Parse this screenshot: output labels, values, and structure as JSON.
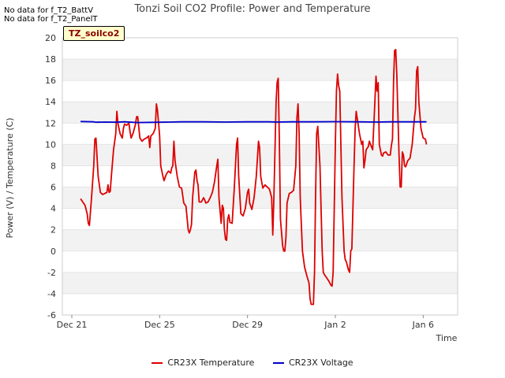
{
  "no_data_messages": [
    "No data for f_T2_BattV",
    "No data for f_T2_PanelT"
  ],
  "site_badge": "TZ_soilco2",
  "chart_data": {
    "type": "line",
    "title": "Tonzi Soil CO2 Profile: Power and Temperature",
    "xlabel": "Time",
    "ylabel": "Power (V) / Temperature (C)",
    "ylim": [
      -6,
      20
    ],
    "yticks": [
      -6,
      -4,
      -2,
      0,
      2,
      4,
      6,
      8,
      10,
      12,
      14,
      16,
      18,
      20
    ],
    "xlim_days": [
      0,
      18
    ],
    "xticks": [
      {
        "day": 0,
        "label": "Dec 21"
      },
      {
        "day": 4,
        "label": "Dec 25"
      },
      {
        "day": 8,
        "label": "Dec 29"
      },
      {
        "day": 12,
        "label": "Jan 2"
      },
      {
        "day": 16,
        "label": "Jan 6"
      }
    ],
    "grid": "alternating horizontal bands",
    "legend_position": "bottom",
    "series": [
      {
        "name": "CR23X Temperature",
        "color": "#dd0000",
        "points": [
          [
            0.4,
            4.9
          ],
          [
            0.6,
            4.3
          ],
          [
            0.7,
            3.5
          ],
          [
            0.75,
            2.6
          ],
          [
            0.8,
            2.4
          ],
          [
            0.9,
            5.0
          ],
          [
            1.0,
            8.0
          ],
          [
            1.05,
            10.5
          ],
          [
            1.1,
            10.6
          ],
          [
            1.2,
            7.0
          ],
          [
            1.3,
            5.5
          ],
          [
            1.4,
            5.3
          ],
          [
            1.5,
            5.4
          ],
          [
            1.6,
            5.5
          ],
          [
            1.65,
            6.2
          ],
          [
            1.7,
            5.5
          ],
          [
            1.75,
            5.6
          ],
          [
            1.8,
            7.0
          ],
          [
            1.9,
            9.5
          ],
          [
            2.0,
            11.0
          ],
          [
            2.05,
            13.1
          ],
          [
            2.1,
            12.0
          ],
          [
            2.2,
            11.0
          ],
          [
            2.3,
            10.6
          ],
          [
            2.35,
            11.5
          ],
          [
            2.4,
            11.9
          ],
          [
            2.5,
            11.8
          ],
          [
            2.6,
            12.0
          ],
          [
            2.65,
            11.2
          ],
          [
            2.7,
            10.6
          ],
          [
            2.8,
            11.1
          ],
          [
            2.9,
            11.9
          ],
          [
            2.95,
            12.6
          ],
          [
            3.0,
            12.6
          ],
          [
            3.1,
            10.6
          ],
          [
            3.2,
            10.3
          ],
          [
            3.3,
            10.5
          ],
          [
            3.4,
            10.6
          ],
          [
            3.5,
            10.8
          ],
          [
            3.55,
            9.7
          ],
          [
            3.6,
            10.8
          ],
          [
            3.7,
            11.0
          ],
          [
            3.8,
            11.5
          ],
          [
            3.85,
            13.8
          ],
          [
            3.9,
            13.2
          ],
          [
            4.0,
            10.8
          ],
          [
            4.05,
            8.0
          ],
          [
            4.15,
            7.0
          ],
          [
            4.2,
            6.6
          ],
          [
            4.3,
            7.2
          ],
          [
            4.4,
            7.5
          ],
          [
            4.5,
            7.3
          ],
          [
            4.55,
            7.8
          ],
          [
            4.6,
            8.0
          ],
          [
            4.65,
            10.3
          ],
          [
            4.7,
            8.5
          ],
          [
            4.8,
            7.0
          ],
          [
            4.9,
            6.0
          ],
          [
            5.0,
            5.9
          ],
          [
            5.1,
            4.5
          ],
          [
            5.2,
            4.2
          ],
          [
            5.3,
            2.0
          ],
          [
            5.35,
            1.7
          ],
          [
            5.4,
            2.0
          ],
          [
            5.45,
            2.5
          ],
          [
            5.5,
            5.0
          ],
          [
            5.6,
            7.4
          ],
          [
            5.65,
            7.6
          ],
          [
            5.7,
            6.6
          ],
          [
            5.75,
            6.2
          ],
          [
            5.8,
            4.6
          ],
          [
            5.9,
            4.6
          ],
          [
            6.0,
            5.0
          ],
          [
            6.05,
            4.8
          ],
          [
            6.1,
            4.5
          ],
          [
            6.2,
            4.6
          ],
          [
            6.3,
            5.0
          ],
          [
            6.4,
            5.5
          ],
          [
            6.5,
            6.5
          ],
          [
            6.6,
            8.0
          ],
          [
            6.65,
            8.6
          ],
          [
            6.7,
            5.0
          ],
          [
            6.8,
            2.6
          ],
          [
            6.85,
            4.3
          ],
          [
            6.9,
            4.0
          ],
          [
            6.95,
            2.0
          ],
          [
            7.0,
            1.1
          ],
          [
            7.05,
            1.0
          ],
          [
            7.1,
            3.0
          ],
          [
            7.15,
            3.4
          ],
          [
            7.2,
            2.7
          ],
          [
            7.3,
            2.6
          ],
          [
            7.4,
            6.0
          ],
          [
            7.5,
            10.0
          ],
          [
            7.55,
            10.6
          ],
          [
            7.6,
            7.0
          ],
          [
            7.7,
            3.5
          ],
          [
            7.8,
            3.3
          ],
          [
            7.9,
            4.0
          ],
          [
            8.0,
            5.5
          ],
          [
            8.05,
            5.8
          ],
          [
            8.1,
            4.5
          ],
          [
            8.2,
            3.9
          ],
          [
            8.3,
            5.0
          ],
          [
            8.4,
            7.0
          ],
          [
            8.5,
            10.3
          ],
          [
            8.55,
            9.7
          ],
          [
            8.6,
            7.0
          ],
          [
            8.7,
            5.9
          ],
          [
            8.8,
            6.2
          ],
          [
            8.9,
            6.0
          ],
          [
            9.0,
            5.8
          ],
          [
            9.1,
            5.0
          ],
          [
            9.15,
            1.5
          ],
          [
            9.2,
            5.0
          ],
          [
            9.3,
            14.0
          ],
          [
            9.35,
            15.8
          ],
          [
            9.4,
            16.2
          ],
          [
            9.45,
            10.5
          ],
          [
            9.5,
            3.0
          ],
          [
            9.6,
            0.5
          ],
          [
            9.65,
            0.0
          ],
          [
            9.7,
            0.0
          ],
          [
            9.75,
            1.3
          ],
          [
            9.8,
            4.5
          ],
          [
            9.9,
            5.4
          ],
          [
            10.0,
            5.5
          ],
          [
            10.1,
            5.7
          ],
          [
            10.2,
            8.0
          ],
          [
            10.25,
            12.5
          ],
          [
            10.3,
            13.8
          ],
          [
            10.35,
            11.0
          ],
          [
            10.4,
            5.0
          ],
          [
            10.5,
            0.0
          ],
          [
            10.6,
            -1.5
          ],
          [
            10.7,
            -2.3
          ],
          [
            10.8,
            -3.0
          ],
          [
            10.85,
            -4.5
          ],
          [
            10.9,
            -5.0
          ],
          [
            11.0,
            -5.0
          ],
          [
            11.05,
            -2.0
          ],
          [
            11.1,
            5.0
          ],
          [
            11.15,
            11.0
          ],
          [
            11.2,
            11.7
          ],
          [
            11.3,
            8.0
          ],
          [
            11.4,
            0.0
          ],
          [
            11.45,
            -2.0
          ],
          [
            11.5,
            -2.2
          ],
          [
            11.6,
            -2.5
          ],
          [
            11.7,
            -2.8
          ],
          [
            11.8,
            -3.2
          ],
          [
            11.85,
            -3.3
          ],
          [
            11.9,
            -2.0
          ],
          [
            12.0,
            10.0
          ],
          [
            12.05,
            15.0
          ],
          [
            12.1,
            16.6
          ],
          [
            12.15,
            15.5
          ],
          [
            12.2,
            15.0
          ],
          [
            12.3,
            5.0
          ],
          [
            12.4,
            0.0
          ],
          [
            12.45,
            -0.8
          ],
          [
            12.5,
            -1.0
          ],
          [
            12.6,
            -1.8
          ],
          [
            12.65,
            -2.0
          ],
          [
            12.7,
            0.0
          ],
          [
            12.75,
            0.2
          ],
          [
            12.85,
            8.0
          ],
          [
            12.9,
            11.5
          ],
          [
            12.95,
            13.1
          ],
          [
            13.0,
            12.4
          ],
          [
            13.1,
            11.0
          ],
          [
            13.2,
            10.0
          ],
          [
            13.25,
            10.3
          ],
          [
            13.3,
            7.8
          ],
          [
            13.35,
            8.5
          ],
          [
            13.4,
            9.5
          ],
          [
            13.5,
            9.8
          ],
          [
            13.55,
            10.3
          ],
          [
            13.6,
            10.0
          ],
          [
            13.7,
            9.5
          ],
          [
            13.8,
            14.0
          ],
          [
            13.85,
            16.4
          ],
          [
            13.9,
            15.0
          ],
          [
            13.95,
            15.8
          ],
          [
            14.0,
            10.0
          ],
          [
            14.1,
            9.0
          ],
          [
            14.15,
            8.9
          ],
          [
            14.2,
            9.2
          ],
          [
            14.3,
            9.3
          ],
          [
            14.4,
            9.0
          ],
          [
            14.5,
            9.0
          ],
          [
            14.55,
            9.9
          ],
          [
            14.6,
            10.5
          ],
          [
            14.65,
            16.0
          ],
          [
            14.7,
            18.8
          ],
          [
            14.75,
            18.9
          ],
          [
            14.8,
            16.5
          ],
          [
            14.9,
            9.0
          ],
          [
            14.95,
            6.0
          ],
          [
            15.0,
            6.0
          ],
          [
            15.05,
            9.3
          ],
          [
            15.1,
            9.0
          ],
          [
            15.15,
            8.0
          ],
          [
            15.2,
            7.9
          ],
          [
            15.3,
            8.5
          ],
          [
            15.4,
            8.7
          ],
          [
            15.5,
            10.0
          ],
          [
            15.6,
            12.5
          ],
          [
            15.65,
            13.3
          ],
          [
            15.7,
            16.9
          ],
          [
            15.75,
            17.3
          ],
          [
            15.8,
            14.0
          ],
          [
            15.9,
            11.5
          ],
          [
            16.0,
            10.6
          ],
          [
            16.1,
            10.5
          ],
          [
            16.15,
            10.0
          ]
        ]
      },
      {
        "name": "CR23X Voltage",
        "color": "#0000cc",
        "points": [
          [
            0.4,
            12.15
          ],
          [
            1.0,
            12.12
          ],
          [
            1.1,
            12.08
          ],
          [
            1.5,
            12.1
          ],
          [
            2.0,
            12.08
          ],
          [
            2.4,
            12.12
          ],
          [
            3.0,
            12.05
          ],
          [
            4.0,
            12.08
          ],
          [
            4.5,
            12.1
          ],
          [
            5.0,
            12.12
          ],
          [
            6.0,
            12.12
          ],
          [
            7.0,
            12.1
          ],
          [
            8.0,
            12.12
          ],
          [
            9.0,
            12.12
          ],
          [
            9.3,
            12.1
          ],
          [
            10.0,
            12.12
          ],
          [
            11.0,
            12.12
          ],
          [
            12.0,
            12.13
          ],
          [
            13.0,
            12.12
          ],
          [
            13.9,
            12.1
          ],
          [
            14.5,
            12.12
          ],
          [
            15.5,
            12.12
          ],
          [
            16.15,
            12.12
          ]
        ]
      }
    ]
  }
}
